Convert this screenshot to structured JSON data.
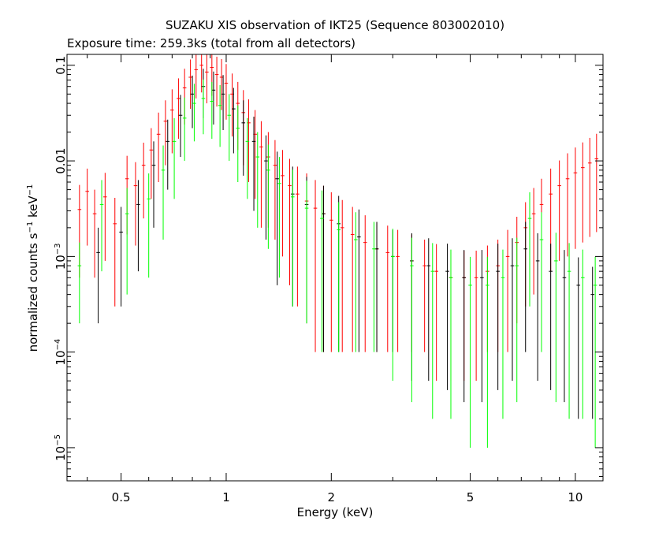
{
  "chart_data": {
    "type": "scatter",
    "title": "SUZAKU XIS observation of IKT25 (Sequence 803002010)",
    "subtitle": "Exposure time: 259.3ks (total from all detectors)",
    "xlabel": "Energy (keV)",
    "ylabel": {
      "prefix": "normalized counts s",
      "exp1": "−1",
      "mid": " keV",
      "exp2": "−1"
    },
    "xscale": "log",
    "yscale": "log",
    "xlim": [
      0.35,
      12.0
    ],
    "ylim": [
      4.5e-06,
      0.13
    ],
    "grid": false,
    "legend": "none",
    "xticks": [
      {
        "value": 0.5,
        "label": "0.5"
      },
      {
        "value": 1,
        "label": "1"
      },
      {
        "value": 2,
        "label": "2"
      },
      {
        "value": 5,
        "label": "5"
      },
      {
        "value": 10,
        "label": "10"
      }
    ],
    "yticks": [
      {
        "value": 0.1,
        "mantissa": "0.1",
        "exp": ""
      },
      {
        "value": 0.01,
        "mantissa": "0.01",
        "exp": ""
      },
      {
        "value": 0.001,
        "mantissa": "10",
        "exp": "−3"
      },
      {
        "value": 0.0001,
        "mantissa": "10",
        "exp": "−4"
      },
      {
        "value": 1e-05,
        "mantissa": "10",
        "exp": "−5"
      }
    ],
    "series": [
      {
        "color": "#ff0000",
        "points": [
          [
            0.38,
            0.0031,
            0.0025
          ],
          [
            0.4,
            0.0048,
            0.0035
          ],
          [
            0.42,
            0.0028,
            0.0022
          ],
          [
            0.45,
            0.0042,
            0.0033
          ],
          [
            0.48,
            0.0022,
            0.0019
          ],
          [
            0.52,
            0.0065,
            0.0048
          ],
          [
            0.55,
            0.0055,
            0.0042
          ],
          [
            0.58,
            0.009,
            0.0065
          ],
          [
            0.61,
            0.013,
            0.009
          ],
          [
            0.64,
            0.019,
            0.013
          ],
          [
            0.67,
            0.026,
            0.017
          ],
          [
            0.7,
            0.034,
            0.022
          ],
          [
            0.73,
            0.045,
            0.028
          ],
          [
            0.76,
            0.058,
            0.034
          ],
          [
            0.79,
            0.075,
            0.04
          ],
          [
            0.82,
            0.09,
            0.045
          ],
          [
            0.85,
            0.1,
            0.048
          ],
          [
            0.88,
            0.085,
            0.045
          ],
          [
            0.91,
            0.095,
            0.047
          ],
          [
            0.94,
            0.08,
            0.043
          ],
          [
            0.97,
            0.075,
            0.041
          ],
          [
            1.0,
            0.065,
            0.038
          ],
          [
            1.04,
            0.05,
            0.032
          ],
          [
            1.08,
            0.04,
            0.027
          ],
          [
            1.12,
            0.032,
            0.023
          ],
          [
            1.16,
            0.025,
            0.019
          ],
          [
            1.21,
            0.019,
            0.015
          ],
          [
            1.26,
            0.014,
            0.012
          ],
          [
            1.32,
            0.011,
            0.009
          ],
          [
            1.38,
            0.009,
            0.0075
          ],
          [
            1.45,
            0.007,
            0.006
          ],
          [
            1.52,
            0.0055,
            0.005
          ],
          [
            1.6,
            0.0045,
            0.0042
          ],
          [
            1.7,
            0.0038,
            0.0036
          ],
          [
            1.8,
            0.0032,
            0.0031
          ],
          [
            1.9,
            0.0028,
            0.0027
          ],
          [
            2.0,
            0.0024,
            0.0023
          ],
          [
            2.15,
            0.002,
            0.0019
          ],
          [
            2.3,
            0.0017,
            0.0016
          ],
          [
            2.5,
            0.0014,
            0.0013
          ],
          [
            2.7,
            0.0012,
            0.0011
          ],
          [
            2.9,
            0.0011,
            0.001
          ],
          [
            3.1,
            0.001,
            0.0009
          ],
          [
            3.4,
            0.0009,
            0.0008
          ],
          [
            3.7,
            0.0008,
            0.0007
          ],
          [
            4.0,
            0.0007,
            0.00065
          ],
          [
            4.4,
            0.0006,
            0.00055
          ],
          [
            4.8,
            0.0006,
            0.00055
          ],
          [
            5.2,
            0.0006,
            0.00055
          ],
          [
            5.6,
            0.0007,
            0.0006
          ],
          [
            6.0,
            0.0008,
            0.0007
          ],
          [
            6.4,
            0.001,
            0.0009
          ],
          [
            6.8,
            0.0014,
            0.0012
          ],
          [
            7.2,
            0.002,
            0.0017
          ],
          [
            7.6,
            0.0028,
            0.0024
          ],
          [
            8.0,
            0.0035,
            0.003
          ],
          [
            8.5,
            0.0045,
            0.0038
          ],
          [
            9.0,
            0.0055,
            0.0046
          ],
          [
            9.5,
            0.0065,
            0.0055
          ],
          [
            10.0,
            0.0075,
            0.0063
          ],
          [
            10.5,
            0.0085,
            0.0071
          ],
          [
            11.0,
            0.0095,
            0.0079
          ],
          [
            11.5,
            0.0105,
            0.0087
          ]
        ]
      },
      {
        "color": "#000000",
        "points": [
          [
            0.43,
            0.0011,
            0.0009
          ],
          [
            0.5,
            0.0018,
            0.0015
          ],
          [
            0.56,
            0.0035,
            0.0028
          ],
          [
            0.62,
            0.009,
            0.007
          ],
          [
            0.68,
            0.016,
            0.011
          ],
          [
            0.74,
            0.03,
            0.019
          ],
          [
            0.8,
            0.05,
            0.028
          ],
          [
            0.86,
            0.06,
            0.032
          ],
          [
            0.92,
            0.055,
            0.031
          ],
          [
            0.98,
            0.05,
            0.029
          ],
          [
            1.05,
            0.035,
            0.023
          ],
          [
            1.12,
            0.025,
            0.018
          ],
          [
            1.2,
            0.016,
            0.013
          ],
          [
            1.3,
            0.01,
            0.0085
          ],
          [
            1.4,
            0.0065,
            0.006
          ],
          [
            1.55,
            0.0045,
            0.0042
          ],
          [
            1.7,
            0.0035,
            0.0033
          ],
          [
            1.9,
            0.0028,
            0.0027
          ],
          [
            2.1,
            0.0022,
            0.0021
          ],
          [
            2.4,
            0.0016,
            0.0015
          ],
          [
            2.7,
            0.0012,
            0.0011
          ],
          [
            3.0,
            0.001,
            0.0009
          ],
          [
            3.4,
            0.0009,
            0.00085
          ],
          [
            3.8,
            0.0008,
            0.00075
          ],
          [
            4.3,
            0.0007,
            0.00066
          ],
          [
            4.8,
            0.0006,
            0.00057
          ],
          [
            5.4,
            0.0006,
            0.00057
          ],
          [
            6.0,
            0.0007,
            0.00066
          ],
          [
            6.6,
            0.0008,
            0.00075
          ],
          [
            7.2,
            0.0012,
            0.0011
          ],
          [
            7.8,
            0.0009,
            0.00085
          ],
          [
            8.5,
            0.0007,
            0.00066
          ],
          [
            9.3,
            0.0006,
            0.00057
          ],
          [
            10.2,
            0.0005,
            0.00048
          ],
          [
            11.2,
            0.0004,
            0.00038
          ]
        ]
      },
      {
        "color": "#00ff00",
        "points": [
          [
            0.38,
            0.0008,
            0.0006
          ],
          [
            0.44,
            0.0035,
            0.0028
          ],
          [
            0.52,
            0.0028,
            0.0024
          ],
          [
            0.6,
            0.004,
            0.0034
          ],
          [
            0.66,
            0.008,
            0.0065
          ],
          [
            0.71,
            0.016,
            0.012
          ],
          [
            0.76,
            0.028,
            0.018
          ],
          [
            0.81,
            0.04,
            0.024
          ],
          [
            0.86,
            0.045,
            0.026
          ],
          [
            0.91,
            0.042,
            0.025
          ],
          [
            0.96,
            0.038,
            0.024
          ],
          [
            1.02,
            0.03,
            0.02
          ],
          [
            1.08,
            0.022,
            0.016
          ],
          [
            1.15,
            0.016,
            0.012
          ],
          [
            1.23,
            0.011,
            0.009
          ],
          [
            1.32,
            0.008,
            0.0068
          ],
          [
            1.42,
            0.0058,
            0.0052
          ],
          [
            1.55,
            0.0042,
            0.0039
          ],
          [
            1.7,
            0.0032,
            0.003
          ],
          [
            1.88,
            0.0025,
            0.0024
          ],
          [
            2.1,
            0.0019,
            0.0018
          ],
          [
            2.35,
            0.0015,
            0.0014
          ],
          [
            2.65,
            0.0012,
            0.0011
          ],
          [
            3.0,
            0.001,
            0.00095
          ],
          [
            3.4,
            0.0008,
            0.00077
          ],
          [
            3.9,
            0.0007,
            0.00068
          ],
          [
            4.4,
            0.0006,
            0.00058
          ],
          [
            5.0,
            0.0005,
            0.00049
          ],
          [
            5.6,
            0.0005,
            0.00049
          ],
          [
            6.2,
            0.0006,
            0.00058
          ],
          [
            6.8,
            0.0008,
            0.00077
          ],
          [
            7.4,
            0.0025,
            0.0022
          ],
          [
            8.0,
            0.0015,
            0.0014
          ],
          [
            8.8,
            0.0009,
            0.00087
          ],
          [
            9.6,
            0.0007,
            0.00068
          ],
          [
            10.5,
            0.0006,
            0.00058
          ],
          [
            11.4,
            0.0005,
            0.00049
          ]
        ]
      }
    ]
  }
}
